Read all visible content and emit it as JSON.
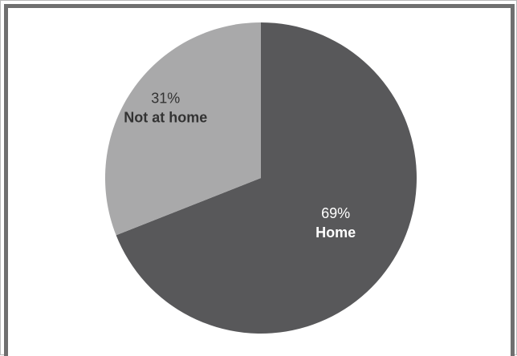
{
  "chart_data": {
    "type": "pie",
    "categories": [
      "Home",
      "Not at home"
    ],
    "values": [
      69,
      31
    ],
    "labels": [
      "69%",
      "31%"
    ],
    "colors": [
      "#58585a",
      "#a9a9aa"
    ],
    "label_colors": [
      "#ffffff",
      "#333333"
    ],
    "start": "12 o'clock",
    "direction": "clockwise"
  }
}
